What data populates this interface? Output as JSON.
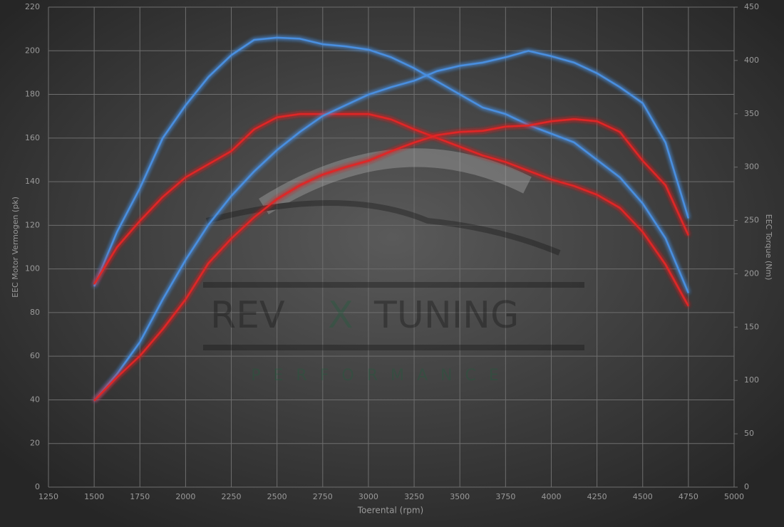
{
  "chart_data": {
    "type": "line",
    "x_label": "Toerental (rpm)",
    "y_label": "EEC Motor Vermogen (pk)",
    "y2_label": "EEC Torque (Nm)",
    "watermark_text": [
      "REV",
      "X",
      "TUNING",
      "PERFORMANCE"
    ],
    "x": [
      1500,
      1625,
      1750,
      1875,
      2000,
      2125,
      2250,
      2375,
      2500,
      2625,
      2750,
      2875,
      3000,
      3125,
      3250,
      3375,
      3500,
      3625,
      3750,
      3875,
      4000,
      4125,
      4250,
      4375,
      4500,
      4625,
      4750
    ],
    "series": [
      {
        "color": "#4a8fe0",
        "values": [
          92,
          117,
          137,
          160,
          175,
          188,
          198,
          205,
          206,
          205.5,
          203,
          202,
          200.5,
          197,
          192,
          186,
          180,
          174,
          171,
          166,
          162,
          158,
          150,
          142,
          130,
          114,
          89
        ]
      },
      {
        "color": "#e02525",
        "values": [
          93,
          110,
          122,
          133,
          142,
          148,
          154,
          164,
          169.5,
          171,
          171,
          171,
          171,
          168.5,
          164,
          160,
          156,
          152,
          149,
          145,
          141,
          138,
          134,
          128,
          117,
          102,
          83
        ]
      },
      {
        "color": "#4a8fe0",
        "axis": "y2",
        "values": [
          81,
          106,
          136,
          176,
          213,
          246,
          273,
          296,
          316,
          333,
          348,
          358,
          368,
          375,
          381,
          390,
          395,
          398,
          403,
          409,
          404,
          398,
          388,
          375,
          360,
          323,
          252
        ]
      },
      {
        "color": "#e02525",
        "axis": "y2",
        "values": [
          81,
          103,
          123,
          148,
          176,
          210,
          233,
          253,
          270,
          283,
          293,
          300,
          306,
          315,
          323,
          330,
          333,
          334,
          338,
          339,
          343,
          345,
          343,
          333,
          306,
          283,
          236
        ]
      }
    ],
    "xlim": [
      1250,
      5000
    ],
    "xticks": [
      1250,
      1500,
      1750,
      2000,
      2250,
      2500,
      2750,
      3000,
      3250,
      3500,
      3750,
      4000,
      4250,
      4500,
      4750,
      5000
    ],
    "ylim": [
      0,
      220
    ],
    "yticks": [
      0,
      20,
      40,
      60,
      80,
      100,
      120,
      140,
      160,
      180,
      200,
      220
    ],
    "y2lim": [
      0,
      450
    ],
    "y2ticks": [
      0,
      50,
      100,
      150,
      200,
      250,
      300,
      350,
      400,
      450
    ],
    "grid": true
  }
}
